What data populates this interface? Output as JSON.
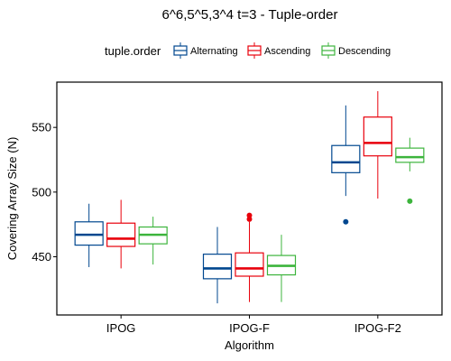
{
  "chart_data": {
    "type": "boxplot",
    "title": "6^6,5^5,3^4 t=3 - Tuple-order",
    "xlabel": "Algorithm",
    "ylabel": "Covering Array Size (N)",
    "ylim": [
      405,
      585
    ],
    "yticks": [
      450,
      500,
      550
    ],
    "categories": [
      "IPOG",
      "IPOG-F",
      "IPOG-F2"
    ],
    "legend": {
      "title": "tuple.order",
      "position": "top"
    },
    "series": [
      {
        "name": "Alternating",
        "color": "#00478f",
        "boxes": [
          {
            "min": 442,
            "q1": 459,
            "median": 467,
            "q3": 477,
            "max": 491,
            "outliers": []
          },
          {
            "min": 414,
            "q1": 433,
            "median": 441,
            "q3": 452,
            "max": 473,
            "outliers": []
          },
          {
            "min": 497,
            "q1": 515,
            "median": 523,
            "q3": 536,
            "max": 567,
            "outliers": [
              477
            ]
          }
        ]
      },
      {
        "name": "Ascending",
        "color": "#e8000b",
        "boxes": [
          {
            "min": 441,
            "q1": 458,
            "median": 464,
            "q3": 476,
            "max": 494,
            "outliers": []
          },
          {
            "min": 415,
            "q1": 435,
            "median": 441,
            "q3": 453,
            "max": 477,
            "outliers": [
              479,
              482
            ]
          },
          {
            "min": 495,
            "q1": 528,
            "median": 538,
            "q3": 558,
            "max": 578,
            "outliers": []
          }
        ]
      },
      {
        "name": "Descending",
        "color": "#3cb43c",
        "boxes": [
          {
            "min": 444,
            "q1": 460,
            "median": 467,
            "q3": 473,
            "max": 481,
            "outliers": []
          },
          {
            "min": 415,
            "q1": 436,
            "median": 443,
            "q3": 451,
            "max": 467,
            "outliers": []
          },
          {
            "min": 516,
            "q1": 523,
            "median": 527,
            "q3": 534,
            "max": 542,
            "outliers": [
              493
            ]
          }
        ]
      }
    ]
  }
}
